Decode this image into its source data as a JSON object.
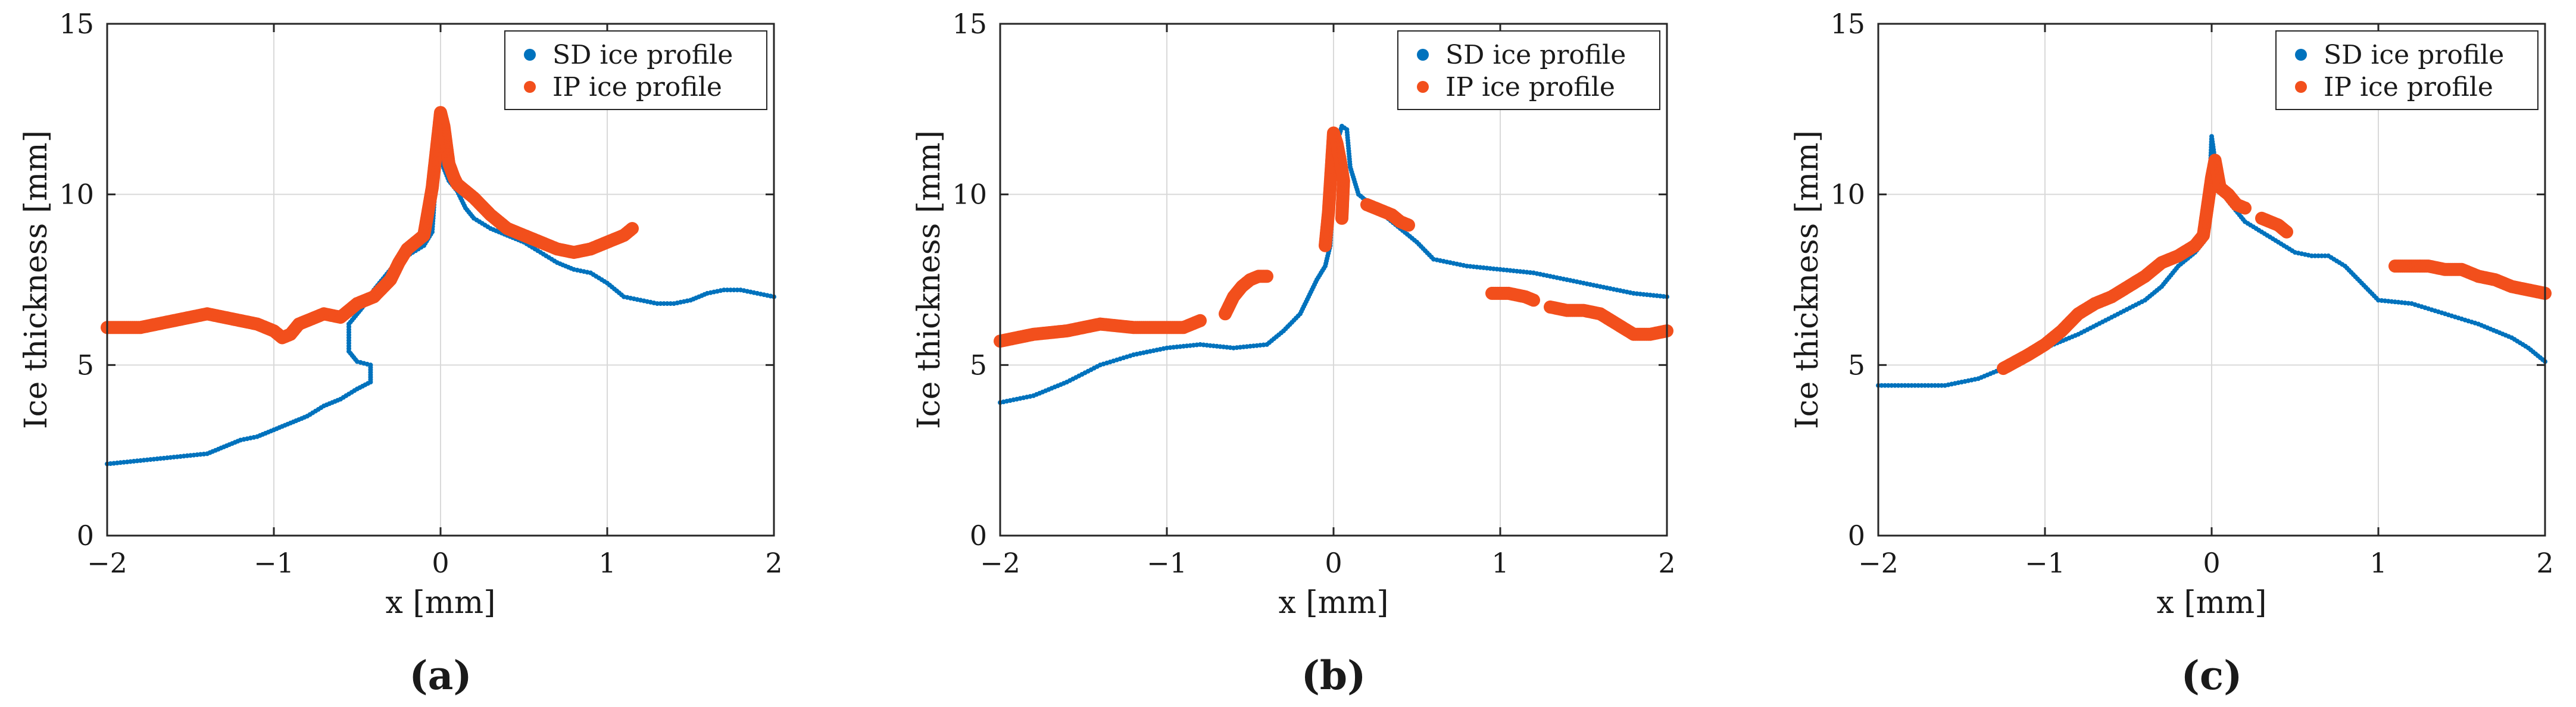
{
  "colors": {
    "sd": "#0072BD",
    "ip": "#F24F1C",
    "grid": "#d9d9d9",
    "axis": "#262626"
  },
  "chart_data": [
    {
      "type": "scatter",
      "panel_label": "(a)",
      "xlabel": "x [mm]",
      "ylabel": "Ice thickness [mm]",
      "xlim": [
        -2,
        2
      ],
      "ylim": [
        0,
        15
      ],
      "xticks": [
        -2,
        -1,
        0,
        1,
        2
      ],
      "yticks": [
        0,
        5,
        10,
        15
      ],
      "xtick_labels": [
        "−2",
        "−1",
        "0",
        "1",
        "2"
      ],
      "ytick_labels": [
        "0",
        "5",
        "10",
        "15"
      ],
      "grid": true,
      "legend": "top-right",
      "series": [
        {
          "name": "SD ice profile",
          "color": "#0072BD",
          "style": "dotted",
          "x": [
            -2.0,
            -1.8,
            -1.6,
            -1.4,
            -1.3,
            -1.2,
            -1.1,
            -1.0,
            -0.9,
            -0.8,
            -0.7,
            -0.6,
            -0.5,
            -0.42,
            -0.42,
            -0.5,
            -0.55,
            -0.55,
            -0.5,
            -0.45,
            -0.4,
            -0.3,
            -0.2,
            -0.1,
            -0.05,
            0.0,
            0.0,
            0.05,
            0.1,
            0.15,
            0.2,
            0.3,
            0.4,
            0.5,
            0.6,
            0.7,
            0.8,
            0.9,
            1.0,
            1.1,
            1.2,
            1.3,
            1.4,
            1.5,
            1.6,
            1.7,
            1.8,
            1.9,
            2.0
          ],
          "y": [
            2.1,
            2.2,
            2.3,
            2.4,
            2.6,
            2.8,
            2.9,
            3.1,
            3.3,
            3.5,
            3.8,
            4.0,
            4.3,
            4.5,
            5.0,
            5.1,
            5.4,
            6.2,
            6.5,
            6.8,
            7.2,
            7.8,
            8.2,
            8.5,
            8.9,
            12.5,
            11.0,
            10.4,
            10.1,
            9.6,
            9.3,
            9.0,
            8.8,
            8.6,
            8.3,
            8.0,
            7.8,
            7.7,
            7.4,
            7.0,
            6.9,
            6.8,
            6.8,
            6.9,
            7.1,
            7.2,
            7.2,
            7.1,
            7.0
          ]
        },
        {
          "name": "IP ice profile",
          "color": "#F24F1C",
          "style": "thick",
          "x": [
            -2.0,
            -1.8,
            -1.6,
            -1.4,
            -1.2,
            -1.1,
            -1.0,
            -0.95,
            -0.9,
            -0.85,
            -0.8,
            -0.7,
            -0.6,
            -0.5,
            -0.4,
            -0.3,
            -0.25,
            -0.2,
            -0.15,
            -0.1,
            -0.05,
            0.0,
            0.02,
            0.05,
            0.08,
            0.1,
            0.15,
            0.2,
            0.3,
            0.4,
            0.5,
            0.6,
            0.7,
            0.8,
            0.9,
            1.0,
            1.1,
            1.15
          ],
          "y": [
            6.1,
            6.1,
            6.3,
            6.5,
            6.3,
            6.2,
            6.0,
            5.8,
            5.9,
            6.2,
            6.3,
            6.5,
            6.4,
            6.8,
            7.0,
            7.5,
            8.0,
            8.4,
            8.6,
            8.8,
            10.2,
            12.4,
            12.0,
            10.9,
            10.5,
            10.3,
            10.1,
            9.9,
            9.4,
            9.0,
            8.8,
            8.6,
            8.4,
            8.3,
            8.4,
            8.6,
            8.8,
            9.0
          ]
        }
      ]
    },
    {
      "type": "scatter",
      "panel_label": "(b)",
      "xlabel": "x [mm]",
      "ylabel": "Ice thickness [mm]",
      "xlim": [
        -2,
        2
      ],
      "ylim": [
        0,
        15
      ],
      "xticks": [
        -2,
        -1,
        0,
        1,
        2
      ],
      "yticks": [
        0,
        5,
        10,
        15
      ],
      "xtick_labels": [
        "−2",
        "−1",
        "0",
        "1",
        "2"
      ],
      "ytick_labels": [
        "0",
        "5",
        "10",
        "15"
      ],
      "grid": true,
      "legend": "top-right",
      "series": [
        {
          "name": "SD ice profile",
          "color": "#0072BD",
          "style": "dotted",
          "x": [
            -2.0,
            -1.8,
            -1.6,
            -1.4,
            -1.2,
            -1.0,
            -0.8,
            -0.6,
            -0.4,
            -0.3,
            -0.2,
            -0.15,
            -0.1,
            -0.05,
            -0.02,
            0.0,
            0.02,
            0.05,
            0.08,
            0.1,
            0.15,
            0.2,
            0.3,
            0.4,
            0.5,
            0.6,
            0.8,
            1.0,
            1.2,
            1.4,
            1.6,
            1.8,
            2.0
          ],
          "y": [
            3.9,
            4.1,
            4.5,
            5.0,
            5.3,
            5.5,
            5.6,
            5.5,
            5.6,
            6.0,
            6.5,
            7.0,
            7.5,
            7.9,
            8.5,
            10.3,
            11.5,
            12.0,
            11.9,
            10.8,
            10.0,
            9.8,
            9.4,
            9.0,
            8.6,
            8.1,
            7.9,
            7.8,
            7.7,
            7.5,
            7.3,
            7.1,
            7.0
          ]
        },
        {
          "name": "IP ice profile",
          "color": "#F24F1C",
          "style": "thick",
          "segments": [
            {
              "x": [
                -2.0,
                -1.8,
                -1.6,
                -1.4,
                -1.2,
                -1.0,
                -0.9,
                -0.8
              ],
              "y": [
                5.7,
                5.9,
                6.0,
                6.2,
                6.1,
                6.1,
                6.1,
                6.3
              ]
            },
            {
              "x": [
                -0.65,
                -0.6,
                -0.55,
                -0.5,
                -0.45,
                -0.4
              ],
              "y": [
                6.5,
                7.0,
                7.3,
                7.5,
                7.6,
                7.6
              ]
            },
            {
              "x": [
                -0.05,
                -0.03,
                0.0,
                0.02,
                0.04,
                0.06,
                0.05
              ],
              "y": [
                8.5,
                9.5,
                11.8,
                11.5,
                11.0,
                10.4,
                9.3
              ]
            },
            {
              "x": [
                0.2,
                0.25,
                0.3,
                0.35,
                0.4,
                0.45
              ],
              "y": [
                9.7,
                9.6,
                9.5,
                9.4,
                9.2,
                9.1
              ]
            },
            {
              "x": [
                0.95,
                1.05,
                1.15,
                1.2
              ],
              "y": [
                7.1,
                7.1,
                7.0,
                6.9
              ]
            },
            {
              "x": [
                1.3,
                1.4,
                1.5,
                1.6,
                1.7,
                1.8,
                1.9,
                2.0
              ],
              "y": [
                6.7,
                6.6,
                6.6,
                6.5,
                6.2,
                5.9,
                5.9,
                6.0
              ]
            }
          ]
        }
      ]
    },
    {
      "type": "scatter",
      "panel_label": "(c)",
      "xlabel": "x [mm]",
      "ylabel": "Ice thickness [mm]",
      "xlim": [
        -2,
        2
      ],
      "ylim": [
        0,
        15
      ],
      "xticks": [
        -2,
        -1,
        0,
        1,
        2
      ],
      "yticks": [
        0,
        5,
        10,
        15
      ],
      "xtick_labels": [
        "−2",
        "−1",
        "0",
        "1",
        "2"
      ],
      "ytick_labels": [
        "0",
        "5",
        "10",
        "15"
      ],
      "grid": true,
      "legend": "top-right",
      "series": [
        {
          "name": "SD ice profile",
          "color": "#0072BD",
          "style": "dotted",
          "x": [
            -2.0,
            -1.8,
            -1.6,
            -1.4,
            -1.2,
            -1.0,
            -0.8,
            -0.6,
            -0.4,
            -0.3,
            -0.2,
            -0.1,
            -0.05,
            -0.02,
            0.0,
            0.02,
            0.05,
            0.1,
            0.2,
            0.3,
            0.4,
            0.5,
            0.6,
            0.7,
            0.8,
            0.9,
            1.0,
            1.2,
            1.4,
            1.6,
            1.8,
            1.9,
            2.0
          ],
          "y": [
            4.4,
            4.4,
            4.4,
            4.6,
            5.0,
            5.5,
            5.9,
            6.4,
            6.9,
            7.3,
            7.9,
            8.3,
            8.6,
            9.3,
            11.7,
            11.0,
            10.3,
            9.8,
            9.2,
            8.9,
            8.6,
            8.3,
            8.2,
            8.2,
            7.9,
            7.4,
            6.9,
            6.8,
            6.5,
            6.2,
            5.8,
            5.5,
            5.1
          ]
        },
        {
          "name": "IP ice profile",
          "color": "#F24F1C",
          "style": "thick",
          "segments": [
            {
              "x": [
                -1.25,
                -1.1,
                -1.0,
                -0.9,
                -0.8,
                -0.7,
                -0.6,
                -0.5,
                -0.4,
                -0.3,
                -0.2,
                -0.1,
                -0.05,
                0.0,
                0.02,
                0.05,
                0.1,
                0.15,
                0.2
              ],
              "y": [
                4.9,
                5.3,
                5.6,
                6.0,
                6.5,
                6.8,
                7.0,
                7.3,
                7.6,
                8.0,
                8.2,
                8.5,
                8.8,
                10.5,
                11.0,
                10.2,
                10.0,
                9.7,
                9.6
              ]
            },
            {
              "x": [
                0.3,
                0.35,
                0.4,
                0.45
              ],
              "y": [
                9.3,
                9.2,
                9.1,
                8.9
              ]
            },
            {
              "x": [
                1.1,
                1.2,
                1.3,
                1.4,
                1.5,
                1.6,
                1.7,
                1.8,
                1.9,
                2.0
              ],
              "y": [
                7.9,
                7.9,
                7.9,
                7.8,
                7.8,
                7.6,
                7.5,
                7.3,
                7.2,
                7.1
              ]
            }
          ]
        }
      ]
    }
  ]
}
